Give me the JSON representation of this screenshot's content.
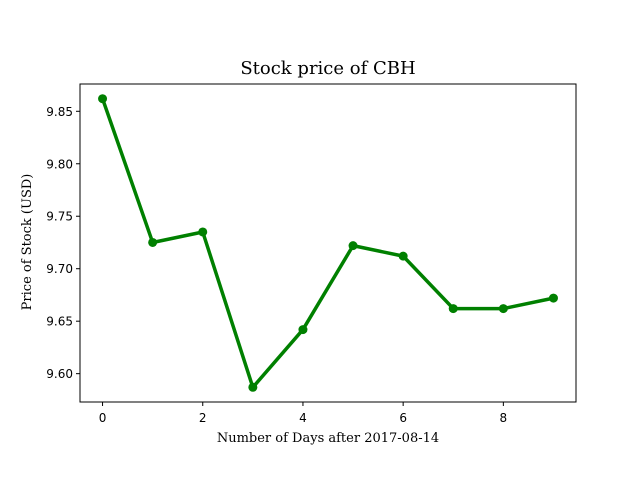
{
  "chart_data": {
    "type": "line",
    "title": "Stock price of CBH",
    "xlabel": "Number of Days after 2017-08-14",
    "ylabel": "Price of Stock (USD)",
    "x": [
      0,
      1,
      2,
      3,
      4,
      5,
      6,
      7,
      8,
      9
    ],
    "series": [
      {
        "values": [
          9.862,
          9.725,
          9.735,
          9.587,
          9.642,
          9.722,
          9.712,
          9.662,
          9.662,
          9.672
        ],
        "color": "#008000"
      }
    ],
    "xticks": [
      0,
      2,
      4,
      6,
      8
    ],
    "yticks": [
      "9.60",
      "9.65",
      "9.70",
      "9.75",
      "9.80",
      "9.85"
    ],
    "xlim": [
      -0.45,
      9.45
    ],
    "ylim": [
      9.573,
      9.876
    ],
    "grid": false
  }
}
